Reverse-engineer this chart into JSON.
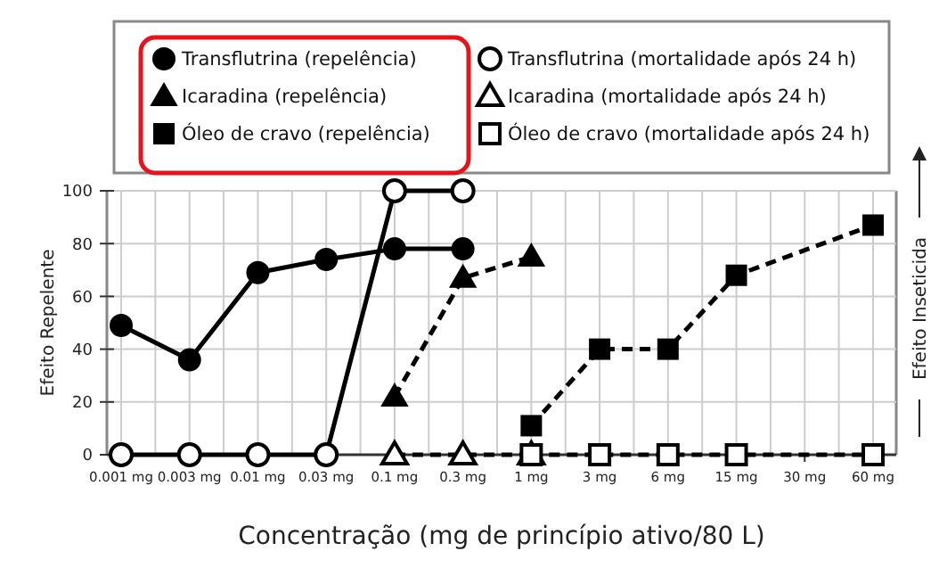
{
  "chart_data": {
    "type": "line",
    "xlabel": "Concentração (mg de princípio ativo/80 L)",
    "ylabel": "Efeito Repelente",
    "y2label": "Efeito Inseticida",
    "categories": [
      "0.001 mg",
      "0.003 mg",
      "0.01 mg",
      "0.03 mg",
      "0.1 mg",
      "0.3 mg",
      "1 mg",
      "3 mg",
      "6 mg",
      "15 mg",
      "30 mg",
      "60 mg"
    ],
    "ylim": [
      0,
      100
    ],
    "yticks": [
      0,
      20,
      40,
      60,
      80,
      100
    ],
    "grid": true,
    "legend": "top",
    "series": [
      {
        "name": "Transflutrina (repelência)",
        "color": "#000000",
        "marker": "circle",
        "line_style": "solid",
        "values": [
          49,
          36,
          69,
          74,
          78,
          78,
          null,
          null,
          null,
          null,
          null,
          null
        ]
      },
      {
        "name": "Icaradina (repelência)",
        "color": "#000000",
        "marker": "triangle",
        "line_style": "dashed",
        "values": [
          null,
          null,
          null,
          null,
          22,
          67,
          75,
          null,
          null,
          null,
          null,
          null
        ]
      },
      {
        "name": "Óleo de cravo (repelência)",
        "color": "#000000",
        "marker": "square",
        "line_style": "dashed",
        "values": [
          null,
          null,
          null,
          null,
          null,
          null,
          11,
          40,
          40,
          68,
          null,
          87
        ]
      },
      {
        "name": "Transflutrina (mortalidade após 24 h)",
        "color": "#000000",
        "marker": "circle-open",
        "line_style": "solid",
        "values": [
          0,
          0,
          0,
          0,
          100,
          100,
          null,
          null,
          null,
          null,
          null,
          null
        ]
      },
      {
        "name": "Icaradina (mortalidade após 24 h)",
        "color": "#000000",
        "marker": "triangle-open",
        "line_style": "dashed",
        "values": [
          null,
          null,
          null,
          null,
          0,
          0,
          0,
          null,
          null,
          null,
          null,
          null
        ]
      },
      {
        "name": "Óleo de cravo (mortalidade após 24 h)",
        "color": "#000000",
        "marker": "square-open",
        "line_style": "dashed",
        "values": [
          null,
          null,
          null,
          null,
          null,
          null,
          0,
          0,
          0,
          0,
          null,
          0
        ]
      }
    ]
  }
}
